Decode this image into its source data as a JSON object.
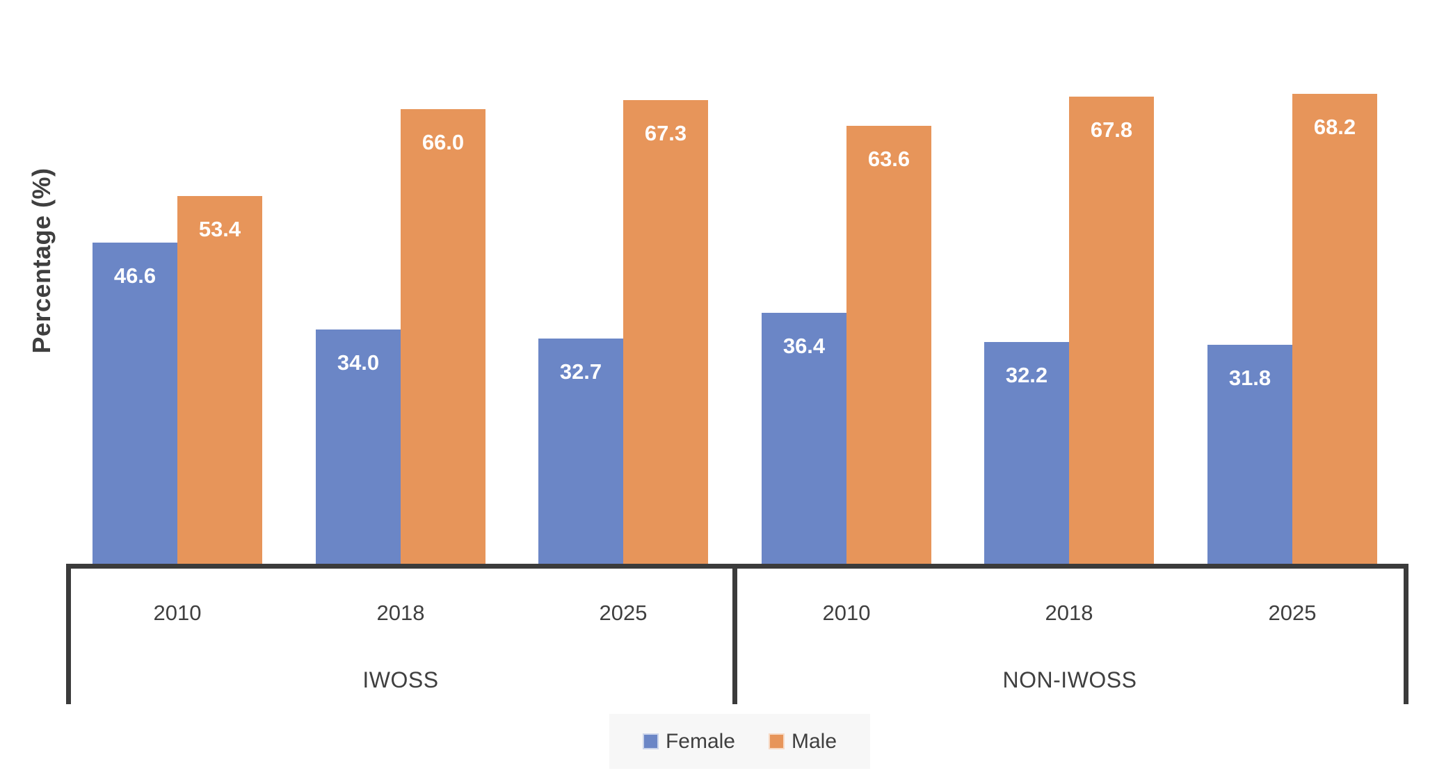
{
  "chart_data": {
    "type": "bar",
    "title": "",
    "ylabel": "Percentage (%)",
    "xlabel": "",
    "ylim": [
      0,
      70
    ],
    "grid": false,
    "legend_position": "bottom",
    "axis_groups": [
      {
        "label": "IWOSS",
        "categories": [
          "2010",
          "2018",
          "2025"
        ]
      },
      {
        "label": "NON-IWOSS",
        "categories": [
          "2010",
          "2018",
          "2025"
        ]
      }
    ],
    "categories": [
      "IWOSS 2010",
      "IWOSS 2018",
      "IWOSS 2025",
      "NON-IWOSS 2010",
      "NON-IWOSS 2018",
      "NON-IWOSS 2025"
    ],
    "series": [
      {
        "name": "Female",
        "color": "#6B86C6",
        "values": [
          46.6,
          34.0,
          32.7,
          36.4,
          32.2,
          31.8
        ]
      },
      {
        "name": "Male",
        "color": "#E7955A",
        "values": [
          53.4,
          66.0,
          67.3,
          63.6,
          67.8,
          68.2
        ]
      }
    ],
    "value_label_decimals": 1,
    "value_label_color": "#FFFFFF"
  },
  "colors": {
    "axis": "#3B3B3B",
    "text": "#3F3F3F",
    "legend_bg": "#F7F7F7",
    "female": "#6B86C6",
    "male": "#E7955A"
  }
}
